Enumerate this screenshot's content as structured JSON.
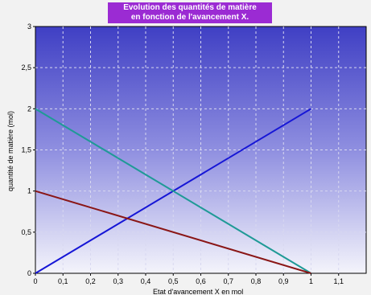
{
  "chart_data": {
    "type": "line",
    "title_line1": "Evolution des quantités de matière",
    "title_line2": "en fonction de l'avancement X.",
    "xlabel": "Etat d'avancement  X en mol",
    "ylabel": "quantité de matière (mol)",
    "xlim": [
      0,
      1.2
    ],
    "ylim": [
      0,
      3
    ],
    "xticks": [
      "0",
      "0,1",
      "0,2",
      "0,3",
      "0,4",
      "0,5",
      "0,6",
      "0,7",
      "0,8",
      "0,9",
      "1",
      "1,1"
    ],
    "yticks": [
      "0",
      "0,5",
      "1",
      "1,5",
      "2",
      "2,5",
      "3"
    ],
    "grid": true,
    "series": [
      {
        "color": "#1616d6",
        "x": [
          0,
          1
        ],
        "y": [
          0,
          2
        ]
      },
      {
        "color": "#1f9a96",
        "x": [
          0,
          1
        ],
        "y": [
          2,
          0
        ]
      },
      {
        "color": "#8a1616",
        "x": [
          0,
          1
        ],
        "y": [
          1,
          0
        ]
      }
    ]
  }
}
